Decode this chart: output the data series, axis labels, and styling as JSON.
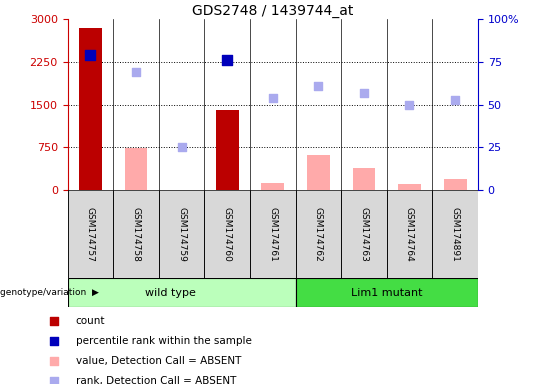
{
  "title": "GDS2748 / 1439744_at",
  "samples": [
    "GSM174757",
    "GSM174758",
    "GSM174759",
    "GSM174760",
    "GSM174761",
    "GSM174762",
    "GSM174763",
    "GSM174764",
    "GSM174891"
  ],
  "count_values": [
    2850,
    0,
    0,
    1400,
    0,
    0,
    0,
    0,
    0
  ],
  "absent_value_bars": [
    0,
    730,
    0,
    0,
    130,
    620,
    380,
    110,
    200
  ],
  "percentile_rank_dots_pct": [
    79,
    0,
    0,
    76,
    0,
    0,
    0,
    0,
    0
  ],
  "absent_rank_dots_pct": [
    0,
    69,
    25,
    0,
    54,
    61,
    57,
    50,
    53
  ],
  "ylim_left": [
    0,
    3000
  ],
  "ylim_right": [
    0,
    100
  ],
  "yticks_left": [
    0,
    750,
    1500,
    2250,
    3000
  ],
  "yticks_right": [
    0,
    25,
    50,
    75,
    100
  ],
  "right_tick_labels": [
    "0",
    "25",
    "50",
    "75",
    "100%"
  ],
  "wild_type_count": 5,
  "lim1_mutant_count": 4,
  "color_count_bar": "#bb0000",
  "color_absent_bar": "#ffaaaa",
  "color_percentile_dot": "#0000bb",
  "color_absent_dot": "#aaaaee",
  "color_wild_type_bg": "#bbffbb",
  "color_lim1_bg": "#44dd44",
  "left_tick_color": "#cc0000",
  "right_tick_color": "#0000cc",
  "legend_items": [
    {
      "color": "#bb0000",
      "label": "count"
    },
    {
      "color": "#0000bb",
      "label": "percentile rank within the sample"
    },
    {
      "color": "#ffaaaa",
      "label": "value, Detection Call = ABSENT"
    },
    {
      "color": "#aaaaee",
      "label": "rank, Detection Call = ABSENT"
    }
  ],
  "bar_width": 0.5,
  "dot_size_present": 55,
  "dot_size_absent": 35
}
